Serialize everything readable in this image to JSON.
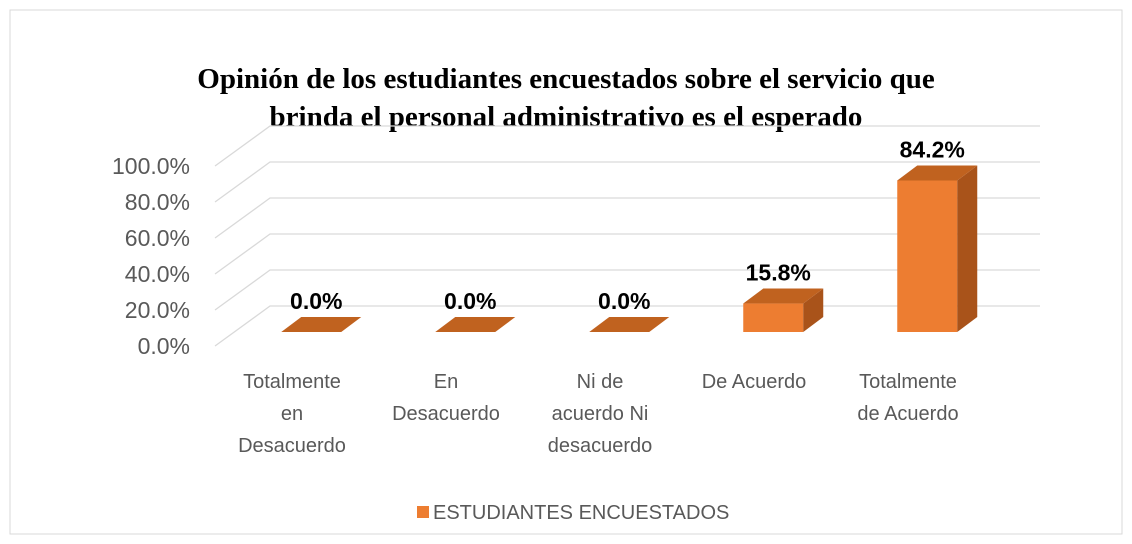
{
  "chart_data": {
    "type": "bar3d",
    "title": "Opinión de los estudiantes encuestados sobre el servicio que brinda el personal administrativo es el esperado",
    "categories": [
      "Totalmente en Desacuerdo",
      "En Desacuerdo",
      "Ni de acuerdo Ni desacuerdo",
      "De Acuerdo",
      "Totalmente de Acuerdo"
    ],
    "series": [
      {
        "name": "ESTUDIANTES ENCUESTADOS",
        "color": "#ed7d31",
        "values": [
          0,
          0,
          0,
          15.8,
          84.2
        ],
        "value_labels": [
          "0.0%",
          "0.0%",
          "0.0%",
          "15.8%",
          "84.2%"
        ]
      }
    ],
    "ylim": [
      0,
      100
    ],
    "yticks": [
      {
        "value": 0,
        "label": "0.0%"
      },
      {
        "value": 20,
        "label": "20.0%"
      },
      {
        "value": 40,
        "label": "40.0%"
      },
      {
        "value": 60,
        "label": "60.0%"
      },
      {
        "value": 80,
        "label": "80.0%"
      },
      {
        "value": 100,
        "label": "100.0%"
      }
    ],
    "grid": true,
    "legend": "bottom"
  }
}
